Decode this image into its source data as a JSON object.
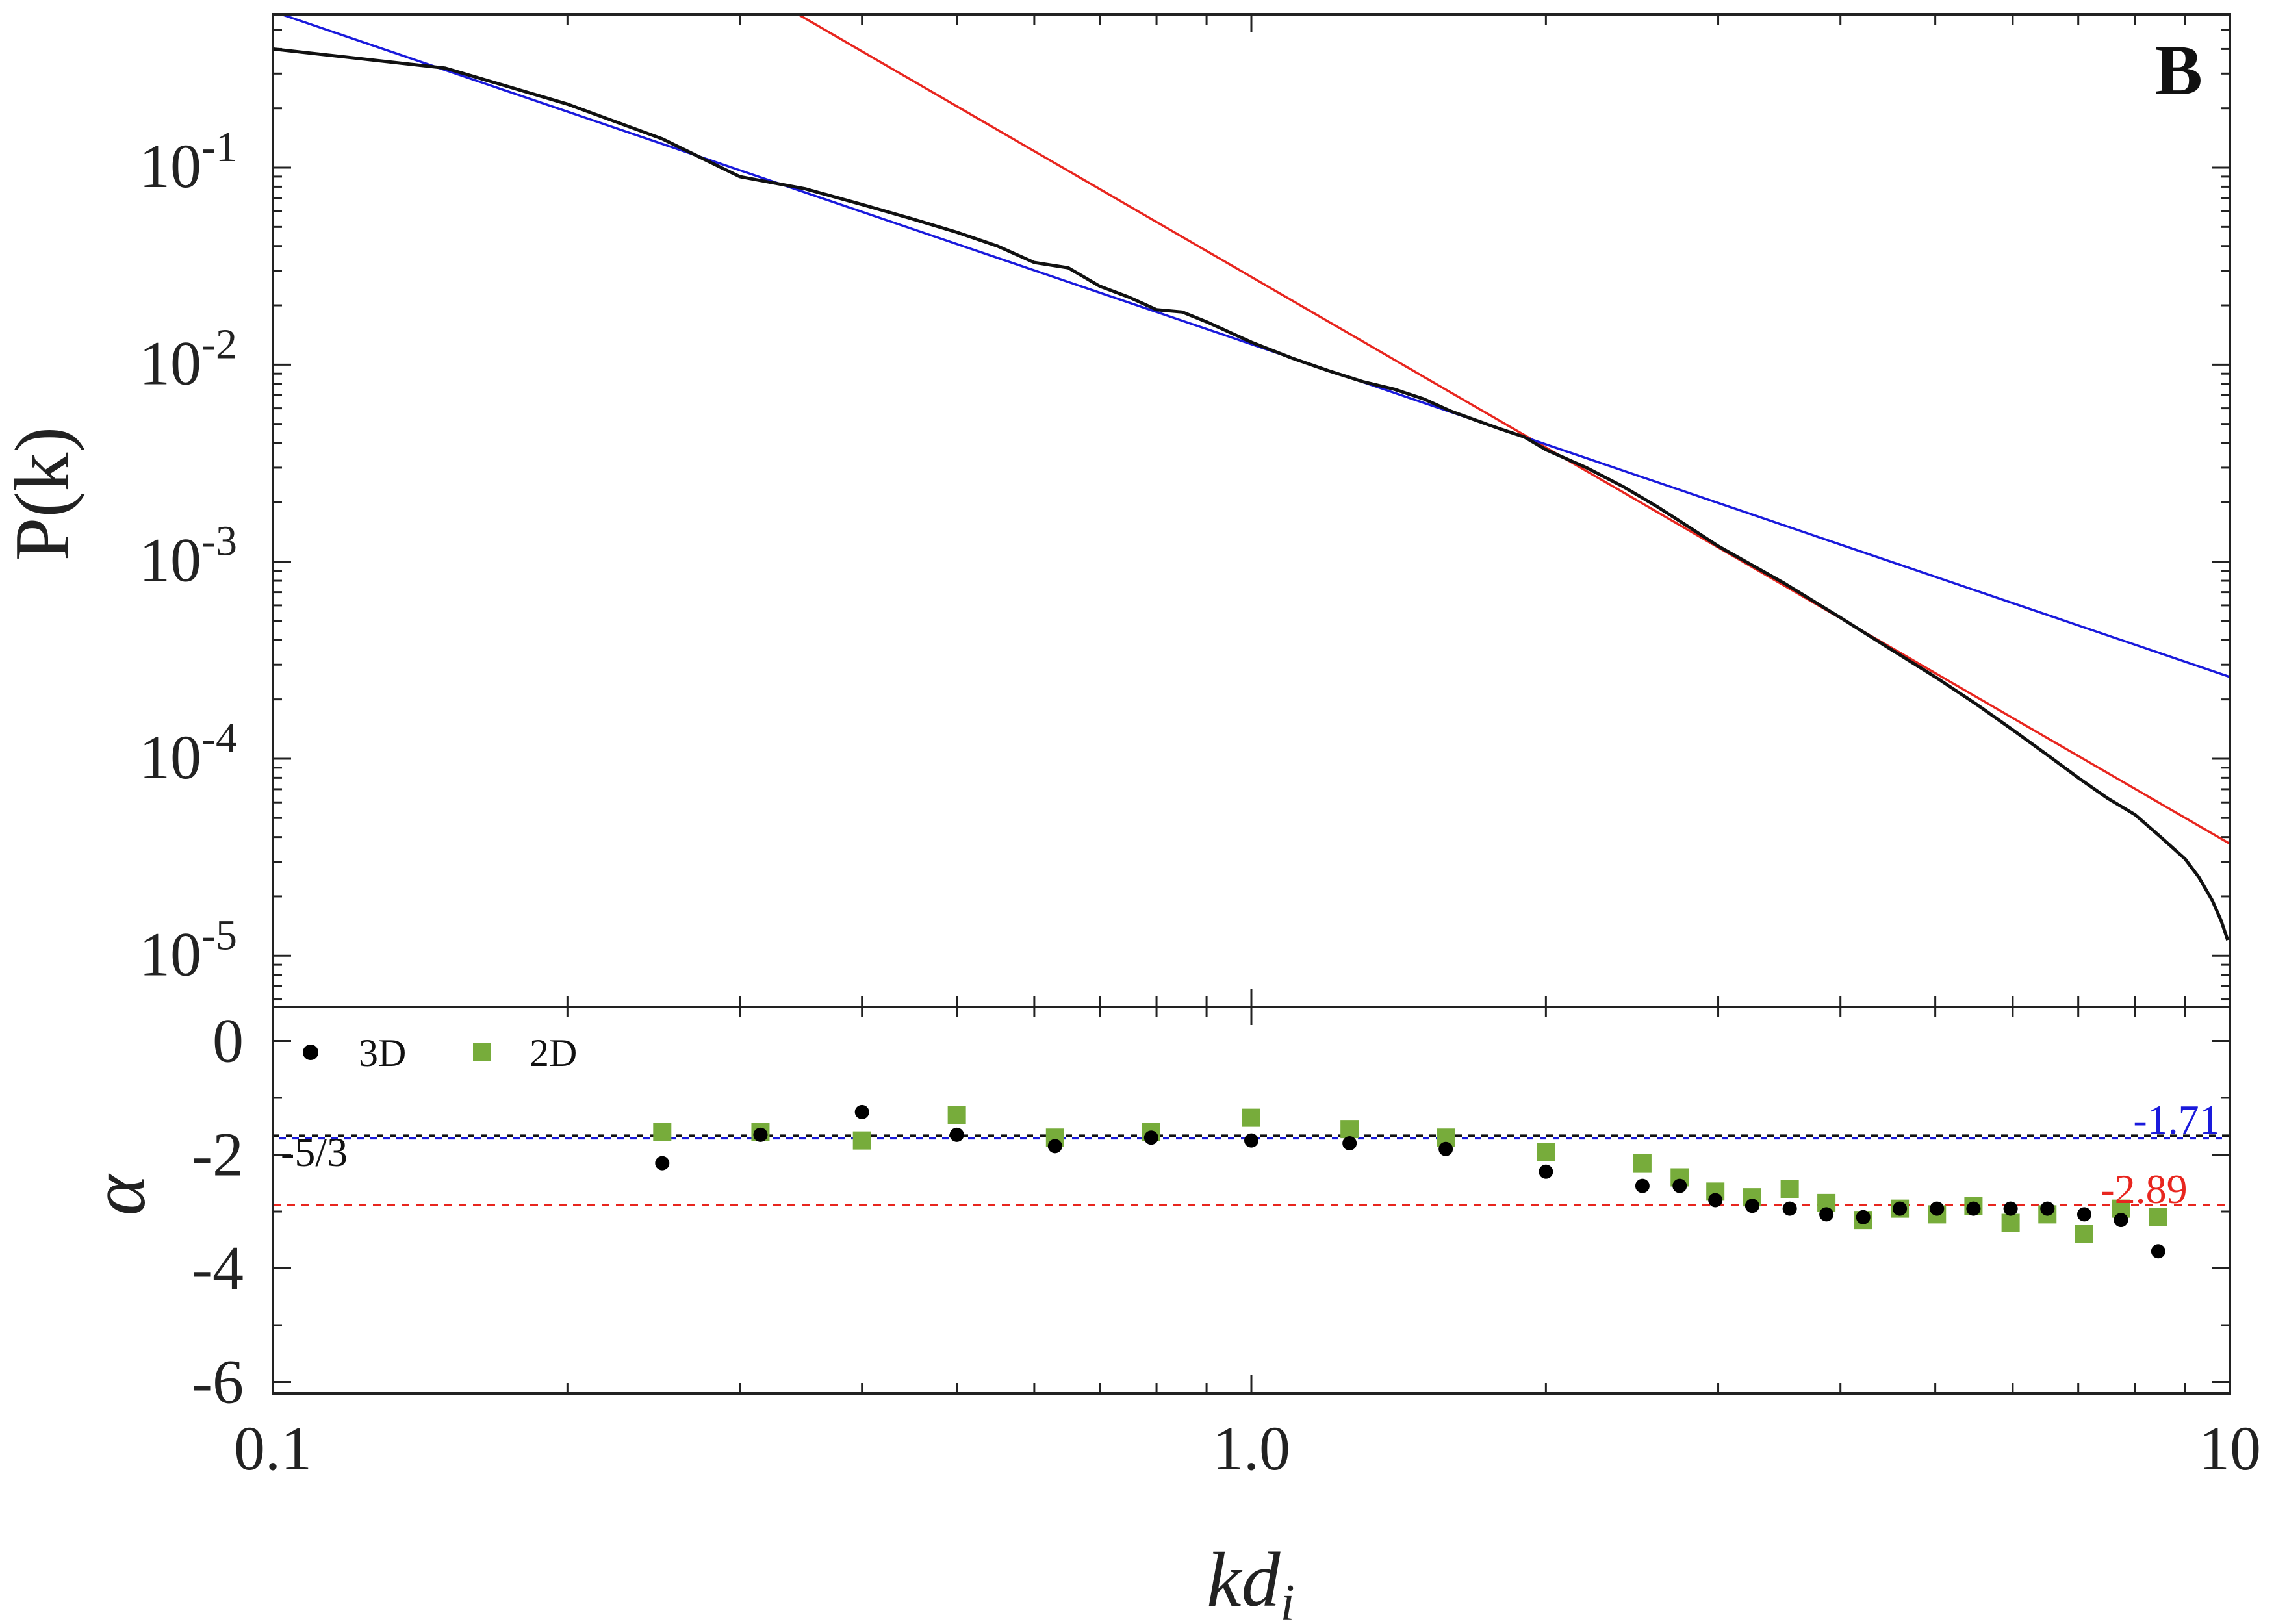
{
  "chart_data": {
    "type": "line",
    "panel_letter": "B",
    "colors": {
      "data": "#111111",
      "fit_blue": "#1a1adc",
      "fit_red": "#e8261f",
      "points_3d": "#000000",
      "points_2d": "#77ac3b"
    },
    "x_axis": {
      "scale": "log",
      "lim": [
        0.1,
        10
      ],
      "ticks": [
        0.1,
        1.0,
        10
      ],
      "tick_labels": [
        "0.1",
        "1.0",
        "10"
      ],
      "label_main": "kd",
      "label_sub": "i"
    },
    "top_panel": {
      "y_scale": "log",
      "ylim": [
        5.5e-06,
        0.6
      ],
      "ylabel": "P(k)",
      "y_ticks": [
        0.1,
        0.01,
        0.001,
        0.0001,
        1e-05
      ],
      "y_tick_labels": [
        {
          "base": "10",
          "exp": "-1"
        },
        {
          "base": "10",
          "exp": "-2"
        },
        {
          "base": "10",
          "exp": "-3"
        },
        {
          "base": "10",
          "exp": "-4"
        },
        {
          "base": "10",
          "exp": "-5"
        }
      ],
      "series": {
        "x": [
          0.1,
          0.15,
          0.2,
          0.25,
          0.3,
          0.35,
          0.4,
          0.45,
          0.5,
          0.55,
          0.6,
          0.65,
          0.7,
          0.75,
          0.8,
          0.85,
          0.9,
          1.0,
          1.1,
          1.2,
          1.3,
          1.4,
          1.5,
          1.6,
          1.7,
          1.8,
          1.9,
          2.0,
          2.2,
          2.4,
          2.6,
          2.8,
          3.0,
          3.5,
          4.0,
          4.5,
          5.0,
          5.5,
          6.0,
          6.5,
          7.0,
          7.5,
          8.0,
          8.5,
          9.0,
          9.3,
          9.6,
          9.8,
          9.95
        ],
        "y": [
          0.4,
          0.32,
          0.21,
          0.14,
          0.09,
          0.078,
          0.065,
          0.055,
          0.047,
          0.04,
          0.033,
          0.031,
          0.025,
          0.022,
          0.019,
          0.0185,
          0.0165,
          0.013,
          0.0108,
          0.0093,
          0.0082,
          0.0075,
          0.0067,
          0.0058,
          0.0052,
          0.0047,
          0.0043,
          0.0037,
          0.003,
          0.0024,
          0.0019,
          0.0015,
          0.0012,
          0.00078,
          0.00052,
          0.00036,
          0.00026,
          0.00019,
          0.00014,
          0.000105,
          8e-05,
          6.3e-05,
          5.2e-05,
          4e-05,
          3.1e-05,
          2.5e-05,
          1.9e-05,
          1.5e-05,
          1.2e-05
        ]
      },
      "fit_blue": {
        "x": [
          0.1,
          10
        ],
        "y": [
          0.62,
          0.00026
        ]
      },
      "fit_red": {
        "x": [
          0.1,
          10
        ],
        "y": [
          21,
          3.7e-05
        ]
      }
    },
    "bottom_panel": {
      "ylim": [
        -6.2,
        0.6
      ],
      "ylabel": "α",
      "y_ticks": [
        0,
        -2,
        -4,
        -6
      ],
      "y_tick_labels": [
        "0",
        "-2",
        "-4",
        "-6"
      ],
      "legend": [
        {
          "name": "3D",
          "marker": "circle"
        },
        {
          "name": "2D",
          "marker": "square"
        }
      ],
      "legend_position": "top-left",
      "series_3d": {
        "x": [
          0.25,
          0.315,
          0.4,
          0.5,
          0.63,
          0.79,
          1.0,
          1.26,
          1.58,
          2.0,
          2.51,
          2.74,
          2.98,
          3.25,
          3.55,
          3.87,
          4.22,
          4.6,
          5.02,
          5.47,
          5.97,
          6.51,
          7.1,
          7.74,
          8.45
        ],
        "y": [
          -2.15,
          -1.65,
          -1.25,
          -1.65,
          -1.85,
          -1.7,
          -1.75,
          -1.8,
          -1.9,
          -2.3,
          -2.55,
          -2.55,
          -2.8,
          -2.9,
          -2.95,
          -3.05,
          -3.1,
          -2.95,
          -2.95,
          -2.95,
          -2.95,
          -2.95,
          -3.05,
          -3.15,
          -3.7
        ]
      },
      "series_2d": {
        "x": [
          0.25,
          0.315,
          0.4,
          0.5,
          0.63,
          0.79,
          1.0,
          1.26,
          1.58,
          2.0,
          2.51,
          2.74,
          2.98,
          3.25,
          3.55,
          3.87,
          4.22,
          4.6,
          5.02,
          5.47,
          5.97,
          6.51,
          7.1,
          7.74,
          8.45
        ],
        "y": [
          -1.6,
          -1.6,
          -1.75,
          -1.3,
          -1.7,
          -1.6,
          -1.35,
          -1.55,
          -1.7,
          -1.95,
          -2.15,
          -2.4,
          -2.65,
          -2.75,
          -2.6,
          -2.85,
          -3.15,
          -2.95,
          -3.05,
          -2.9,
          -3.2,
          -3.05,
          -3.4,
          -2.95,
          -3.1
        ]
      },
      "ref_lines": [
        {
          "name": "-1.71",
          "y": -1.71,
          "color": "#1a1adc"
        },
        {
          "name": "-5/3",
          "y": -1.6667,
          "color": "#111111"
        },
        {
          "name": "-2.89",
          "y": -2.89,
          "color": "#e8261f"
        }
      ],
      "annotations": {
        "minus_five_thirds": "-5/3",
        "blue_value": "-1.71",
        "red_value": "-2.89"
      }
    }
  }
}
